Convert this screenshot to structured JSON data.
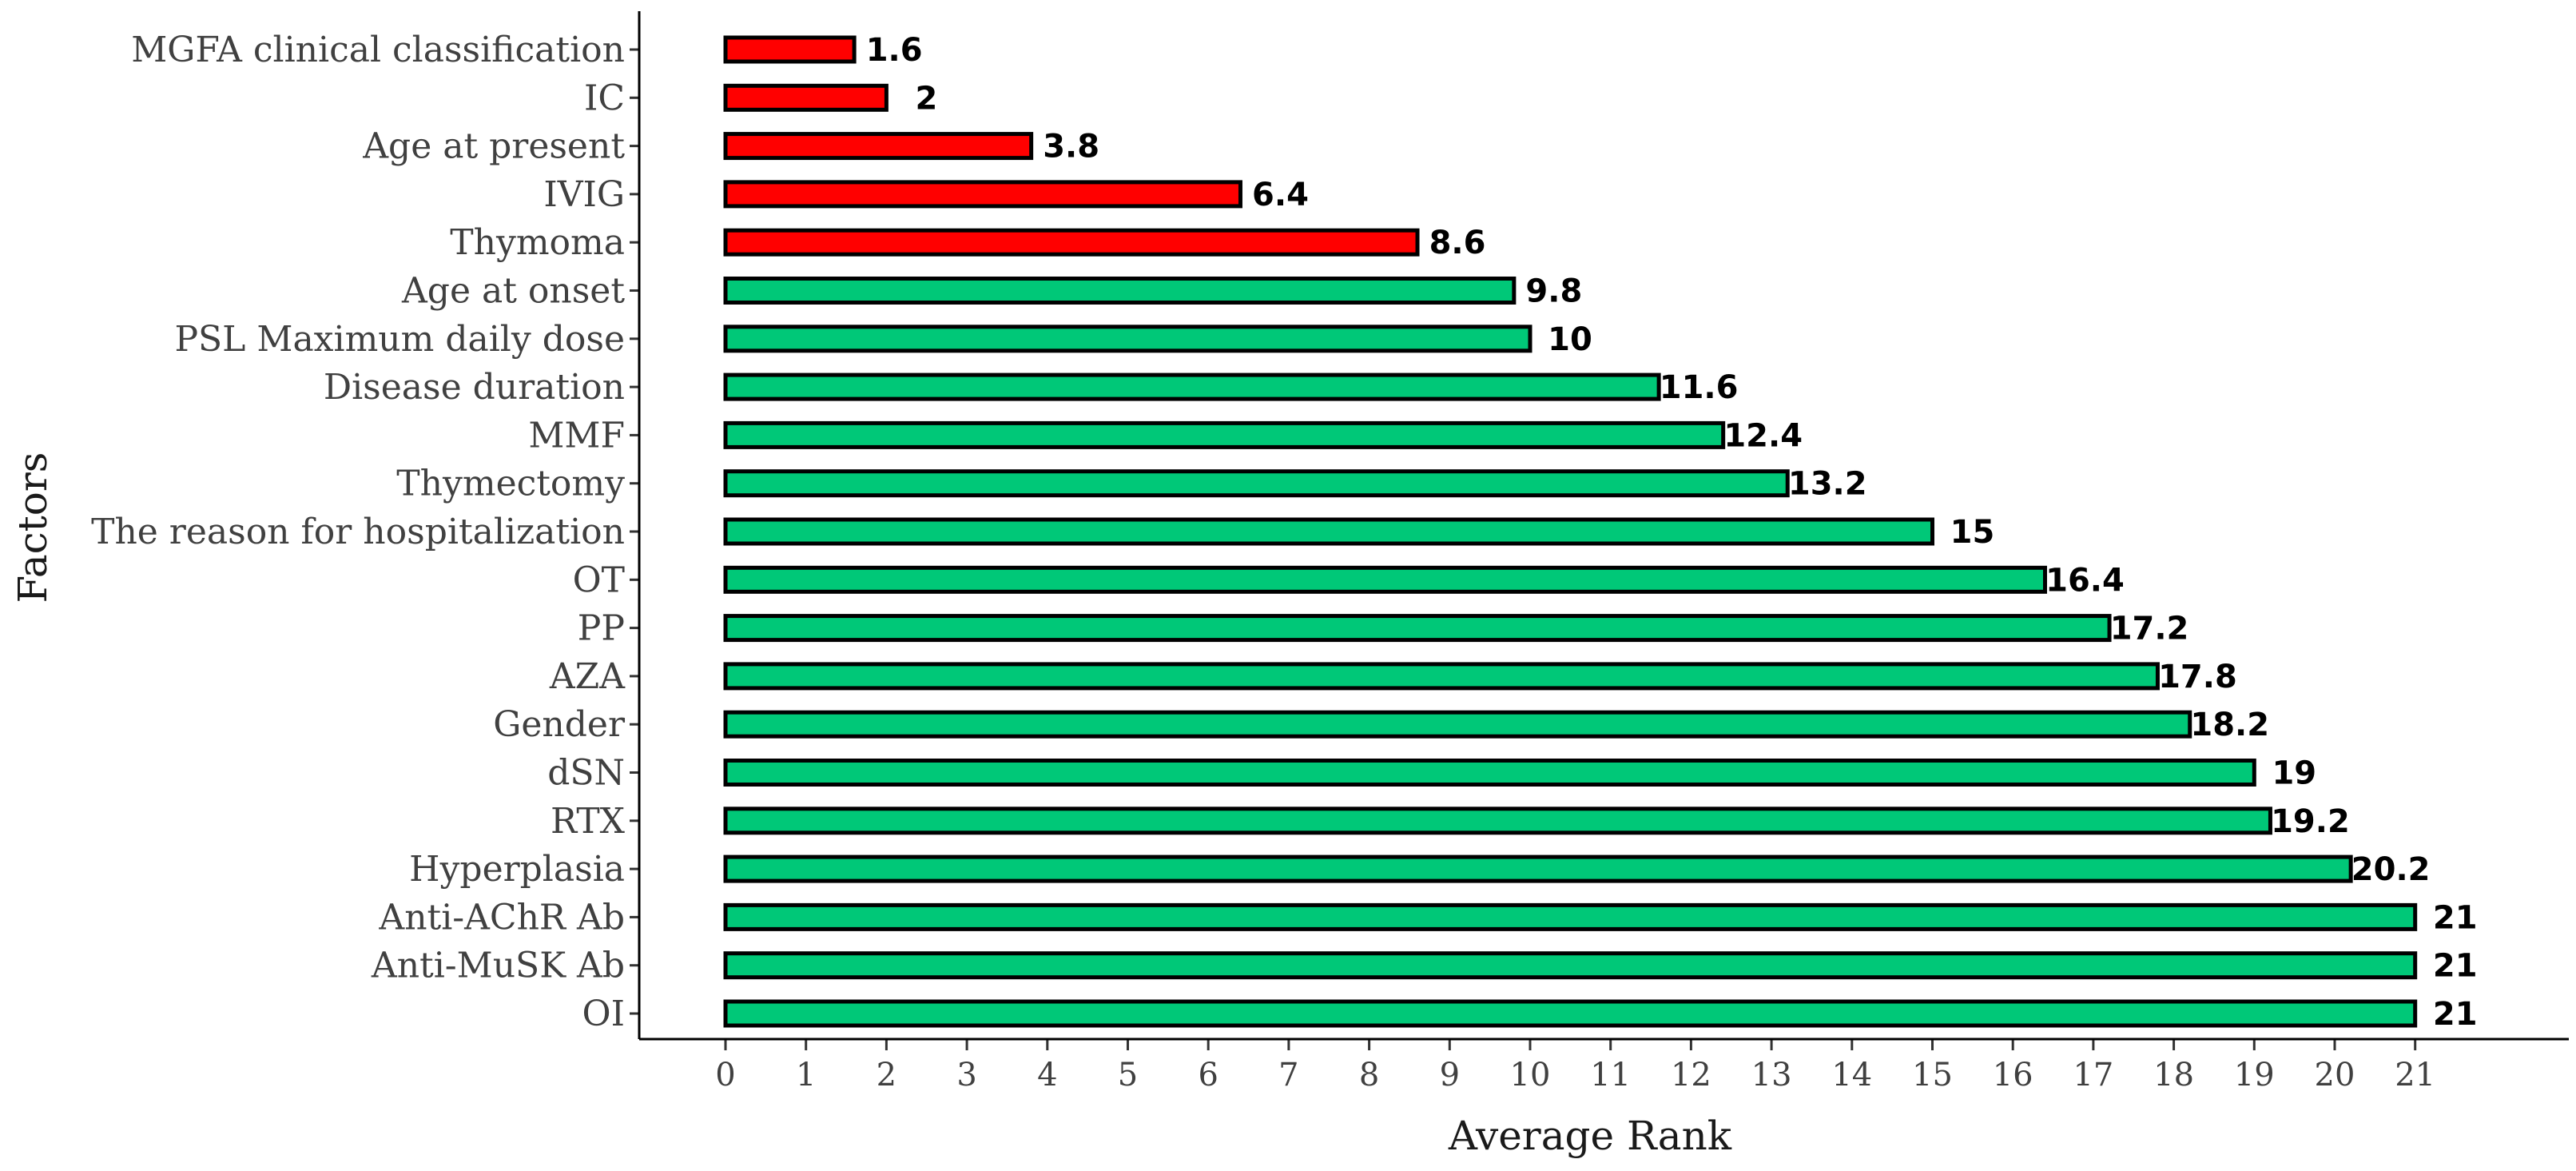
{
  "chart_data": {
    "type": "bar",
    "orientation": "horizontal",
    "xlabel": "Average Rank",
    "ylabel": "Factors",
    "xlim": [
      0,
      21
    ],
    "xticks": [
      0,
      1,
      2,
      3,
      4,
      5,
      6,
      7,
      8,
      9,
      10,
      11,
      12,
      13,
      14,
      15,
      16,
      17,
      18,
      19,
      20,
      21
    ],
    "grid": false,
    "categories": [
      "MGFA clinical classification",
      "IC",
      "Age at present",
      "IVIG",
      "Thymoma",
      "Age at onset",
      "PSL Maximum daily dose",
      "Disease duration",
      "MMF",
      "Thymectomy",
      "The reason for hospitalization",
      "OT",
      "PP",
      "AZA",
      "Gender",
      "dSN",
      "RTX",
      "Hyperplasia",
      "Anti-AChR Ab",
      "Anti-MuSK Ab",
      "OI"
    ],
    "values": [
      1.6,
      2,
      3.8,
      6.4,
      8.6,
      9.8,
      10,
      11.6,
      12.4,
      13.2,
      15,
      16.4,
      17.2,
      17.8,
      18.2,
      19,
      19.2,
      20.2,
      21,
      21,
      21
    ],
    "value_labels": [
      "1.6",
      "2",
      "3.8",
      "6.4",
      "8.6",
      "9.8",
      "10",
      "11.6",
      "12.4",
      "13.2",
      "15",
      "16.4",
      "17.2",
      "17.8",
      "18.2",
      "19",
      "19.2",
      "20.2",
      "21",
      "21",
      "21"
    ],
    "bar_colors": [
      "#ff0000",
      "#ff0000",
      "#ff0000",
      "#ff0000",
      "#ff0000",
      "#00c878",
      "#00c878",
      "#00c878",
      "#00c878",
      "#00c878",
      "#00c878",
      "#00c878",
      "#00c878",
      "#00c878",
      "#00c878",
      "#00c878",
      "#00c878",
      "#00c878",
      "#00c878",
      "#00c878",
      "#00c878"
    ],
    "bar_outline_color": "#000000"
  }
}
